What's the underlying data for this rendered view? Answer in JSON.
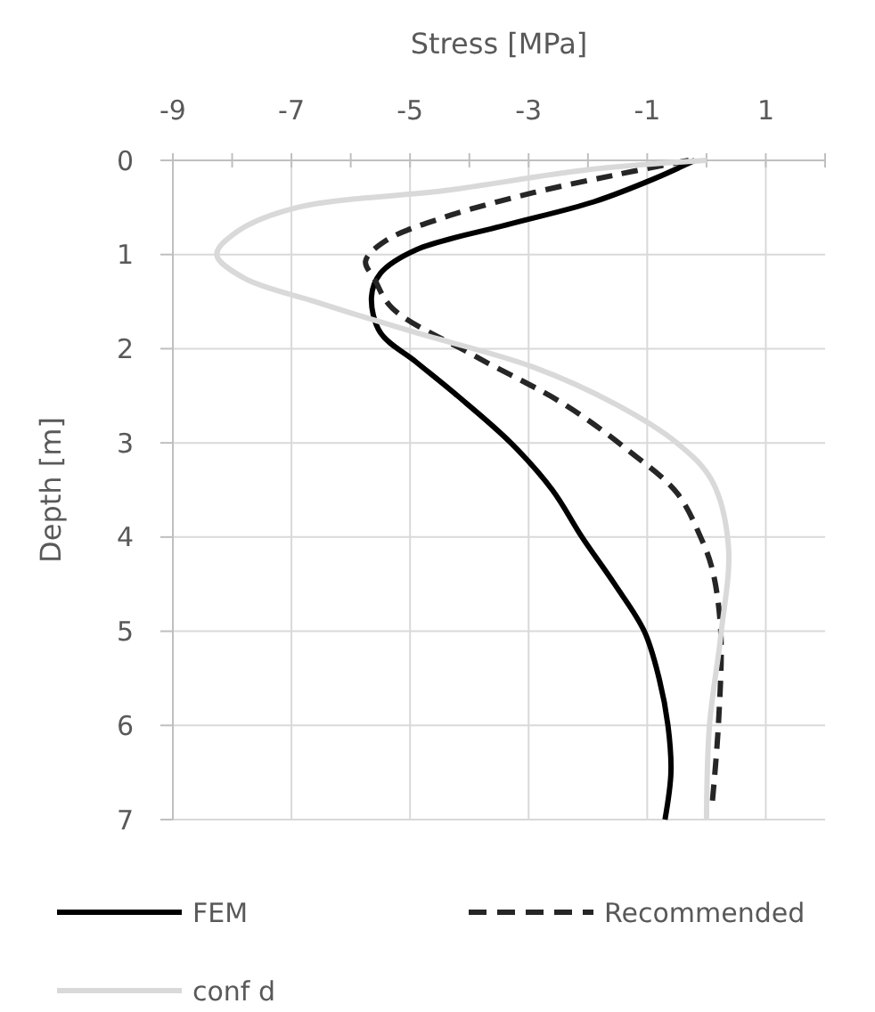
{
  "chart_data": {
    "type": "line",
    "xlabel": "Stress [MPa]",
    "ylabel": "Depth [m]",
    "xlim": [
      -9,
      2
    ],
    "xticks": [
      -9,
      {
        "value": -8,
        "label": null
      },
      -7,
      {
        "value": -6,
        "label": null
      },
      -5,
      {
        "value": -4,
        "label": null
      },
      -3,
      {
        "value": -2,
        "label": null
      },
      -1,
      {
        "value": 0,
        "label": null
      },
      1,
      {
        "value": 2,
        "label": null
      }
    ],
    "ylim": [
      7,
      0
    ],
    "yticks": [
      0,
      1,
      2,
      3,
      4,
      5,
      6,
      7
    ],
    "grid": true,
    "legend": "bottom",
    "series": [
      {
        "name": "FEM",
        "color": "#000000",
        "line_style": "solid",
        "x": [
          -0.2,
          -0.9,
          -1.9,
          -3.4,
          -4.9,
          -5.5,
          -5.65,
          -5.5,
          -4.9,
          -4.2,
          -3.3,
          -2.6,
          -2.1,
          -1.55,
          -1.05,
          -0.8,
          -0.65,
          -0.6,
          -0.7
        ],
        "values": [
          0,
          0.2,
          0.44,
          0.69,
          0.95,
          1.2,
          1.45,
          1.83,
          2.14,
          2.5,
          3,
          3.5,
          4,
          4.5,
          5,
          5.5,
          6,
          6.5,
          7
        ]
      },
      {
        "name": "Recommended",
        "color": "#262626",
        "line_style": "dashed",
        "x": [
          -0.3,
          -1.5,
          -2.9,
          -4.4,
          -5.4,
          -5.75,
          -5.6,
          -5.3,
          -3.9,
          -2.4,
          -1.3,
          -0.5,
          -0.1,
          0.1,
          0.24,
          0.2,
          0.1
        ],
        "values": [
          0,
          0.15,
          0.34,
          0.6,
          0.85,
          1.07,
          1.26,
          1.57,
          2.08,
          2.59,
          3.09,
          3.53,
          4,
          4.35,
          5,
          6,
          6.8
        ]
      },
      {
        "name": "conf d",
        "color": "#d9d9d9",
        "line_style": "solid",
        "x": [
          0,
          -2.0,
          -4.4,
          -6.9,
          -7.9,
          -8.26,
          -7.8,
          -6.6,
          -5.9,
          -4.9,
          -2.9,
          -1.5,
          -0.5,
          0.09,
          0.37,
          0.24,
          0.05,
          0
        ],
        "values": [
          0,
          0.1,
          0.32,
          0.5,
          0.75,
          1.0,
          1.25,
          1.5,
          1.64,
          1.83,
          2.2,
          2.6,
          3.0,
          3.4,
          4.1,
          5.05,
          6,
          7
        ]
      }
    ]
  }
}
